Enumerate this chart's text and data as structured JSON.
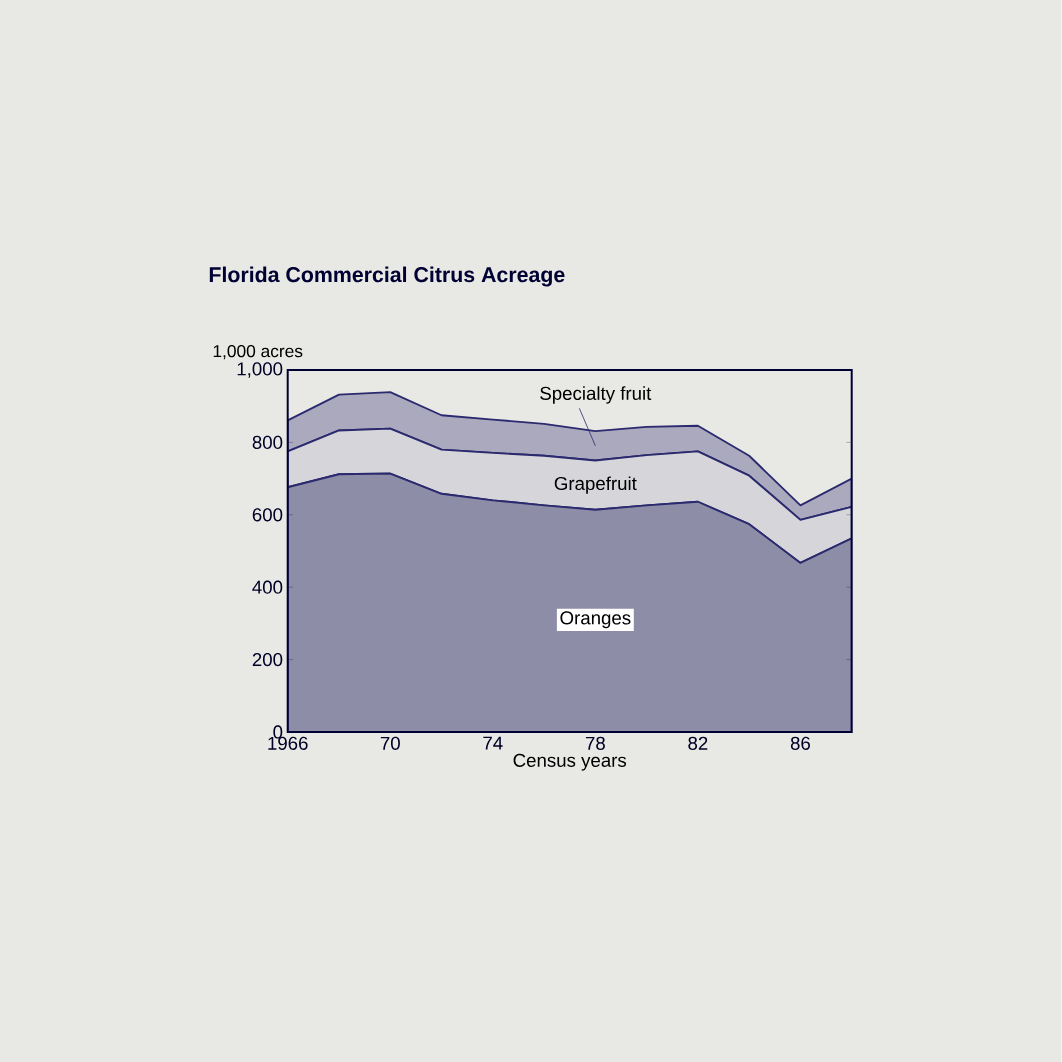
{
  "chart_data": {
    "type": "area",
    "stacked": true,
    "title": "Florida Commercial Citrus Acreage",
    "ylabel": "1,000 acres",
    "xlabel": "Census years",
    "x": [
      1966,
      1968,
      1970,
      1972,
      1974,
      1976,
      1978,
      1980,
      1982,
      1984,
      1986,
      1988
    ],
    "xlim": [
      1966,
      1988
    ],
    "xticks": [
      {
        "value": 1966,
        "label": "1966"
      },
      {
        "value": 1970,
        "label": "70"
      },
      {
        "value": 1974,
        "label": "74"
      },
      {
        "value": 1978,
        "label": "78"
      },
      {
        "value": 1982,
        "label": "82"
      },
      {
        "value": 1986,
        "label": "86"
      }
    ],
    "ylim": [
      0,
      1000
    ],
    "yticks": [
      0,
      200,
      400,
      600,
      800,
      {
        "value": 1000,
        "label": "1,000"
      }
    ],
    "series": [
      {
        "name": "Oranges",
        "color": "#8e8da8",
        "values": [
          676,
          712,
          714,
          658,
          640,
          626,
          614,
          626,
          636,
          574,
          467,
          535
        ]
      },
      {
        "name": "Grapefruit",
        "color": "#d6d6da",
        "values": [
          99,
          121,
          124,
          122,
          131,
          137,
          136,
          139,
          139,
          134,
          119,
          87
        ]
      },
      {
        "name": "Specialty fruit",
        "color": "#aaa9be",
        "values": [
          86,
          99,
          101,
          95,
          92,
          88,
          81,
          78,
          71,
          55,
          40,
          78
        ]
      }
    ]
  }
}
